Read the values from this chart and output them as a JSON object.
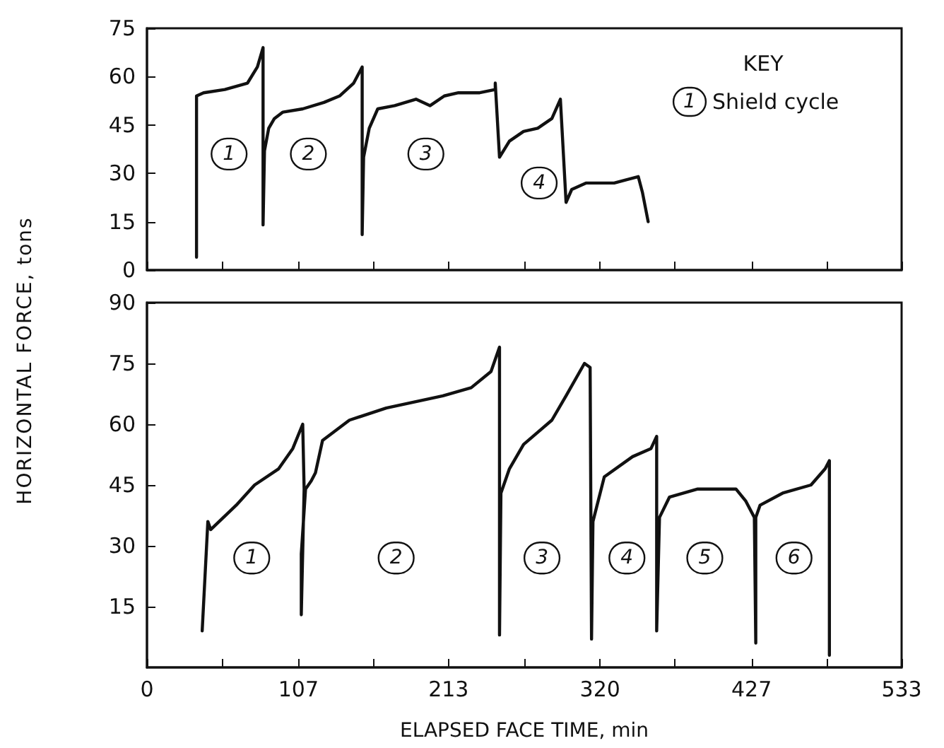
{
  "chart_data": [
    {
      "type": "line",
      "xlim": [
        0,
        533
      ],
      "xticks": [
        0,
        {
          "value": 53,
          "label": null
        },
        107,
        {
          "value": 160,
          "label": null
        },
        213,
        {
          "value": 267,
          "label": null
        },
        320,
        {
          "value": 373,
          "label": null
        },
        427,
        {
          "value": 480,
          "label": null
        },
        533
      ],
      "ylim": [
        0,
        75
      ],
      "yticks": [
        0,
        15,
        30,
        45,
        60,
        75
      ],
      "tick_labels": "y",
      "grid": false,
      "marker": "none",
      "line_style": "solid",
      "series": [
        {
          "color": "#111111",
          "x": [
            35,
            35,
            35,
            40,
            55,
            71,
            78,
            82,
            82,
            83,
            86,
            90,
            96,
            110,
            125,
            136,
            146,
            152,
            152,
            153,
            157,
            163,
            175,
            190,
            200,
            210,
            220,
            235,
            246,
            246,
            249,
            256,
            266,
            276,
            286,
            292,
            296,
            300,
            310,
            330,
            347,
            350,
            354
          ],
          "values": [
            4,
            29,
            54,
            55,
            56,
            58,
            63,
            69,
            14,
            37,
            44,
            47,
            49,
            50,
            52,
            54,
            58,
            63,
            11,
            35,
            44,
            50,
            51,
            53,
            51,
            54,
            55,
            55,
            56,
            58,
            35,
            40,
            43,
            44,
            47,
            53,
            21,
            25,
            27,
            27,
            29,
            24,
            15
          ]
        }
      ],
      "annotations": [
        "KEY",
        "1",
        "Shield cycle",
        {
          "text": "1",
          "x": 58,
          "y": 36
        },
        {
          "text": "2",
          "x": 114,
          "y": 36
        },
        {
          "text": "3",
          "x": 197,
          "y": 36
        },
        {
          "text": "4",
          "x": 277,
          "y": 27
        }
      ]
    },
    {
      "type": "line",
      "xlabel": "ELAPSED FACE TIME, min",
      "ylabel": "HORIZONTAL FORCE, tons",
      "xlim": [
        0,
        533
      ],
      "xticks": [
        0,
        {
          "value": 53,
          "label": null
        },
        107,
        {
          "value": 160,
          "label": null
        },
        213,
        {
          "value": 267,
          "label": null
        },
        320,
        {
          "value": 373,
          "label": null
        },
        427,
        {
          "value": 480,
          "label": null
        },
        533
      ],
      "ylim": [
        0,
        90
      ],
      "yticks": [
        15,
        30,
        45,
        60,
        75,
        90
      ],
      "grid": false,
      "marker": "none",
      "line_style": "solid",
      "series": [
        {
          "color": "#111111",
          "x": [
            39,
            43,
            45,
            63,
            76,
            93,
            103,
            110,
            111,
            109,
            109,
            112,
            116,
            119,
            124,
            143,
            169,
            209,
            229,
            243,
            249,
            249,
            250,
            256,
            266,
            286,
            296,
            309,
            313,
            314,
            315,
            323,
            343,
            356,
            360,
            360,
            362,
            369,
            389,
            416,
            423,
            429,
            430,
            430,
            433,
            449,
            469,
            479,
            482,
            482
          ],
          "values": [
            9,
            36,
            34,
            40,
            45,
            49,
            54,
            60,
            44,
            13,
            28,
            44,
            46,
            48,
            56,
            61,
            64,
            67,
            69,
            73,
            79,
            8,
            43,
            49,
            55,
            61,
            67,
            75,
            74,
            7,
            36,
            47,
            52,
            54,
            57,
            9,
            37,
            42,
            44,
            44,
            41,
            37,
            6,
            37,
            40,
            43,
            45,
            49,
            51,
            3
          ]
        }
      ],
      "annotations": [
        {
          "text": "1",
          "x": 74,
          "y": 27
        },
        {
          "text": "2",
          "x": 176,
          "y": 27
        },
        {
          "text": "3",
          "x": 279,
          "y": 27
        },
        {
          "text": "4",
          "x": 339,
          "y": 27
        },
        {
          "text": "5",
          "x": 394,
          "y": 27
        },
        {
          "text": "6",
          "x": 457,
          "y": 27
        }
      ]
    }
  ]
}
